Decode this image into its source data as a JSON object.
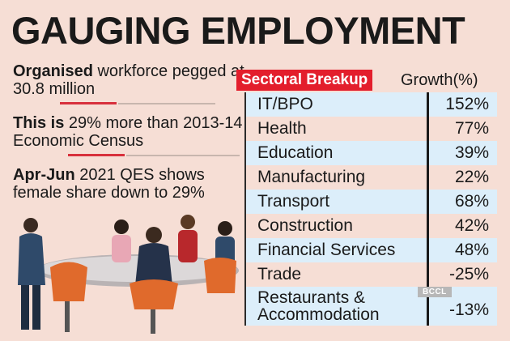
{
  "title": "GAUGING EMPLOYMENT",
  "facts": [
    {
      "bold": "Organised",
      "text": " workforce pegged at 30.8 million"
    },
    {
      "bold": "This is",
      "text": " 29% more than 2013-14 Economic Census"
    },
    {
      "bold": "Apr-Jun",
      "text": " 2021 QES shows female share down to 29%"
    }
  ],
  "watermark": "BCCL",
  "colors": {
    "background": "#f6ded5",
    "accent_red": "#e31e2c",
    "row_shade": "#dceefa",
    "text": "#1a1a1a"
  },
  "chart_data": {
    "type": "table",
    "title": "Sectoral Breakup",
    "value_header": "Growth(%)",
    "categories": [
      "IT/BPO",
      "Health",
      "Education",
      "Manufacturing",
      "Transport",
      "Construction",
      "Financial Services",
      "Trade",
      "Restaurants & Accommodation"
    ],
    "values": [
      "152%",
      "77%",
      "39%",
      "22%",
      "68%",
      "42%",
      "48%",
      "-25%",
      "-13%"
    ]
  }
}
